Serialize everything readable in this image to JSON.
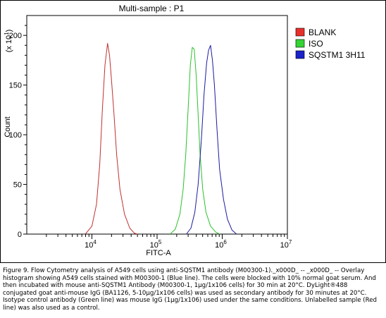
{
  "chart_data": {
    "type": "line",
    "title": "Multi-sample : P1",
    "xlabel": "FITC-A",
    "ylabel": "Count",
    "y_scale_label": "(x 10",
    "y_scale_exp": "1",
    "y_scale_close": ")",
    "x_scale": "log",
    "xlim_exponent": [
      3,
      7
    ],
    "ylim": [
      0,
      220
    ],
    "y_ticks": [
      {
        "value": 0,
        "label": "0"
      },
      {
        "value": 50,
        "label": "50"
      },
      {
        "value": 100,
        "label": "100"
      },
      {
        "value": 150,
        "label": "150"
      },
      {
        "value": 200,
        "label": "200"
      }
    ],
    "x_ticks": [
      {
        "exp": 4,
        "base": "10",
        "sup": "4"
      },
      {
        "exp": 5,
        "base": "10",
        "sup": "5"
      },
      {
        "exp": 6,
        "base": "10",
        "sup": "6"
      },
      {
        "exp": 7,
        "base": "10",
        "sup": "7"
      }
    ],
    "grid": false,
    "legend_position": "right",
    "series": [
      {
        "name": "BLANK",
        "color": "#e8302a",
        "line_color": "#c03030",
        "points": [
          [
            3.9,
            0
          ],
          [
            4.0,
            8
          ],
          [
            4.07,
            30
          ],
          [
            4.12,
            70
          ],
          [
            4.16,
            125
          ],
          [
            4.2,
            170
          ],
          [
            4.24,
            192
          ],
          [
            4.27,
            180
          ],
          [
            4.3,
            155
          ],
          [
            4.34,
            120
          ],
          [
            4.38,
            80
          ],
          [
            4.43,
            45
          ],
          [
            4.5,
            20
          ],
          [
            4.58,
            6
          ],
          [
            4.65,
            1
          ],
          [
            4.7,
            0
          ]
        ]
      },
      {
        "name": "ISO",
        "color": "#35d435",
        "line_color": "#2ac12a",
        "points": [
          [
            5.2,
            0
          ],
          [
            5.28,
            5
          ],
          [
            5.35,
            20
          ],
          [
            5.4,
            45
          ],
          [
            5.44,
            80
          ],
          [
            5.48,
            130
          ],
          [
            5.51,
            170
          ],
          [
            5.54,
            188
          ],
          [
            5.57,
            186
          ],
          [
            5.6,
            160
          ],
          [
            5.63,
            120
          ],
          [
            5.66,
            80
          ],
          [
            5.7,
            45
          ],
          [
            5.75,
            22
          ],
          [
            5.82,
            8
          ],
          [
            5.9,
            2
          ],
          [
            5.96,
            0
          ]
        ]
      },
      {
        "name": "SQSTM1 3H11",
        "color": "#1a22c8",
        "line_color": "#1a1aa0",
        "points": [
          [
            5.45,
            0
          ],
          [
            5.52,
            6
          ],
          [
            5.58,
            22
          ],
          [
            5.63,
            50
          ],
          [
            5.68,
            95
          ],
          [
            5.72,
            140
          ],
          [
            5.76,
            172
          ],
          [
            5.79,
            185
          ],
          [
            5.82,
            190
          ],
          [
            5.85,
            175
          ],
          [
            5.88,
            150
          ],
          [
            5.92,
            105
          ],
          [
            5.96,
            65
          ],
          [
            6.02,
            35
          ],
          [
            6.08,
            15
          ],
          [
            6.15,
            4
          ],
          [
            6.22,
            0
          ]
        ]
      }
    ]
  },
  "caption": "Figure 9. Flow Cytometry analysis of A549 cells using anti-SQSTM1 antibody (M00300-1)._x000D_ -- _x000D_ -- Overlay histogram showing A549 cells stained with M00300-1 (Blue line). The cells were blocked with 10% normal goat serum. And then incubated with mouse anti-SQSTM1 Antibody (M00300-1, 1µg/1x106 cells) for 30 min at 20°C. DyLight®488 conjugated goat anti-mouse IgG (BA1126, 5-10µg/1x106 cells) was used as secondary antibody for 30 minutes at 20°C. Isotype control antibody (Green line) was mouse IgG (1µg/1x106) used under the same conditions. Unlabelled sample (Red line) was also used as a control."
}
